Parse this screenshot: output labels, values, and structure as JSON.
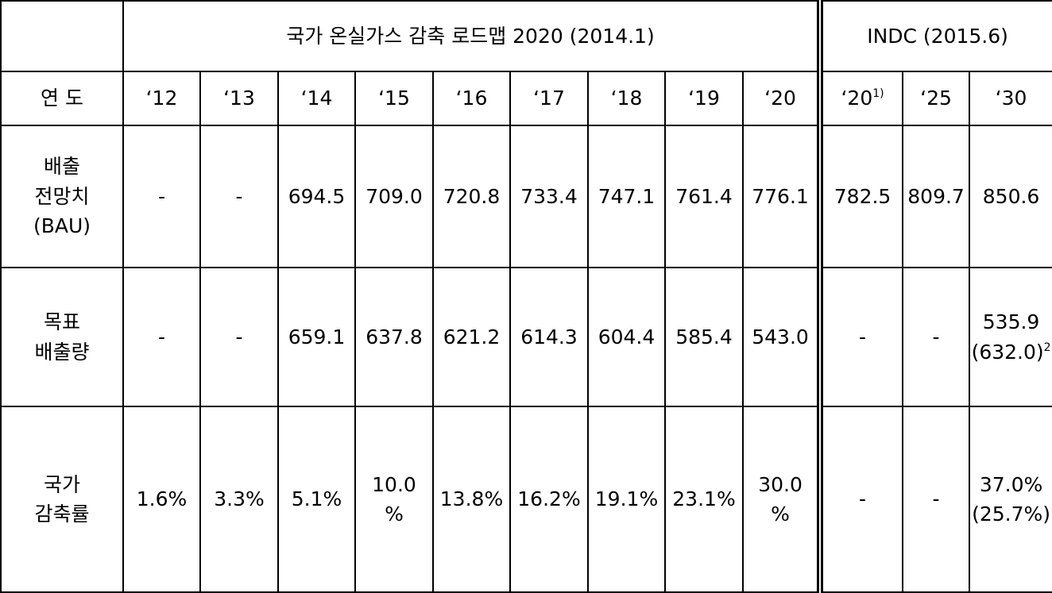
{
  "header": {
    "roadmap": "국가 온실가스 감축 로드맵 2020 (2014.1)",
    "indc": "INDC (2015.6)"
  },
  "year_label": "연 도",
  "years": [
    "‘12",
    "‘13",
    "‘14",
    "‘15",
    "‘16",
    "‘17",
    "‘18",
    "‘19",
    "‘20",
    {
      "lines": [
        "‘20"
      ],
      "sup": "1)"
    },
    "‘25",
    "‘30"
  ],
  "rows": [
    {
      "label": [
        "배출",
        "전망치",
        "(BAU)"
      ],
      "cells": [
        "-",
        "-",
        "694.5",
        "709.0",
        "720.8",
        "733.4",
        "747.1",
        "761.4",
        "776.1",
        "782.5",
        "809.7",
        "850.6"
      ]
    },
    {
      "label": [
        "목표",
        "배출량"
      ],
      "cells": [
        "-",
        "-",
        "659.1",
        "637.8",
        "621.2",
        "614.3",
        "604.4",
        "585.4",
        "543.0",
        "-",
        "-",
        {
          "lines": [
            "535.9",
            "(632.0)"
          ],
          "sup": "2"
        }
      ]
    },
    {
      "label": [
        "국가",
        "감축률"
      ],
      "cells": [
        "1.6%",
        "3.3%",
        "5.1%",
        [
          "10.0",
          "%"
        ],
        "13.8%",
        "16.2%",
        "19.1%",
        "23.1%",
        [
          "30.0",
          "%"
        ],
        "-",
        "-",
        [
          "37.0%",
          "(25.7%)"
        ]
      ]
    }
  ]
}
